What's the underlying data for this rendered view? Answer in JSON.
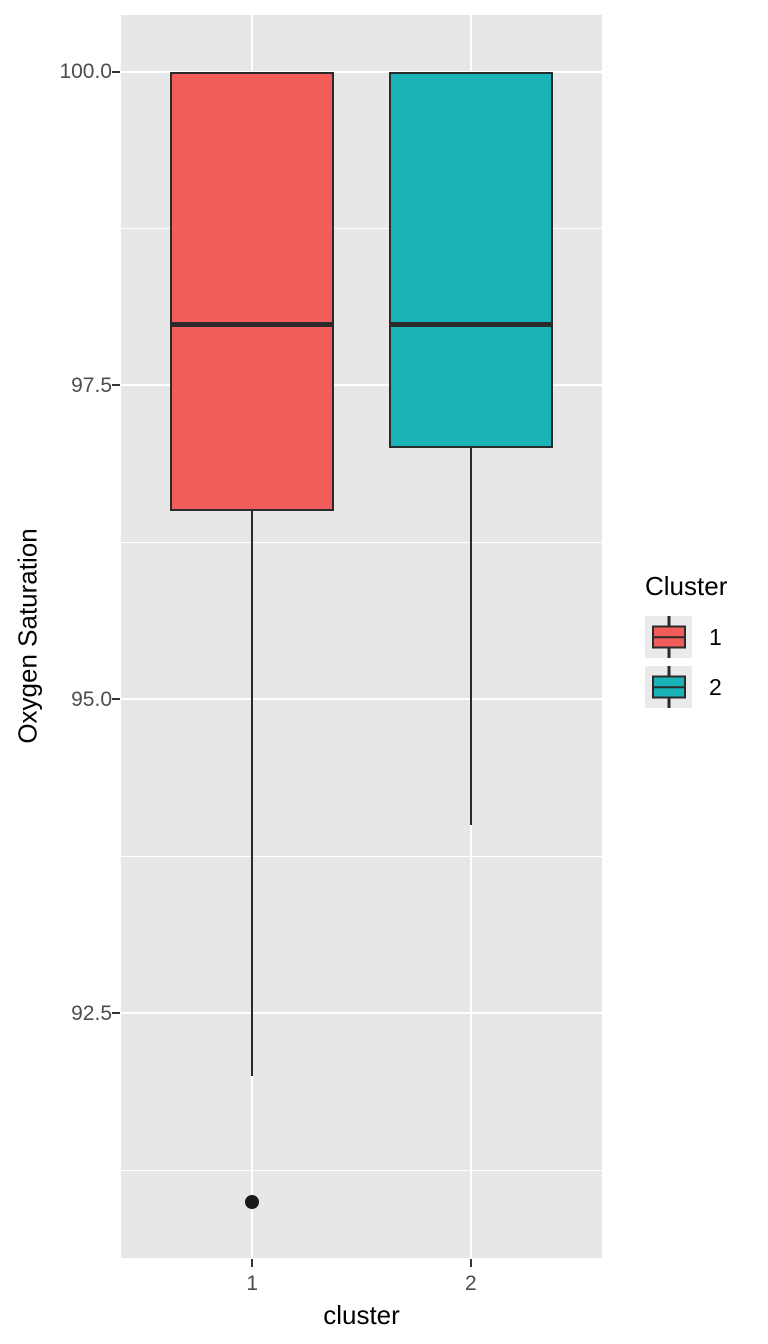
{
  "figure": {
    "background": "#FFFFFF",
    "panel_background": "#E7E7E7",
    "grid_color": "#FFFFFF",
    "box_stroke_color": "#2B2B2B",
    "tick_label_color": "#4D4D4D",
    "axis_title_color": "#000000"
  },
  "chart_data": {
    "type": "boxplot",
    "title": "",
    "xlabel": "cluster",
    "ylabel": "Oxygen Saturation",
    "categories": [
      "1",
      "2"
    ],
    "y_tick_labels": [
      "100.0",
      "97.5",
      "95.0",
      "92.5"
    ],
    "y_tick_values": [
      100.0,
      97.5,
      95.0,
      92.5
    ],
    "y_minor_tick_values": [
      98.75,
      96.25,
      93.75,
      91.25
    ],
    "ylim": [
      90.55,
      100.45
    ],
    "grid": true,
    "legend": {
      "position": "right",
      "title": "Cluster",
      "entries": [
        {
          "label": "1",
          "color": "#F25C5A"
        },
        {
          "label": "2",
          "color": "#1AB3B7"
        }
      ]
    },
    "series": [
      {
        "cluster": "1",
        "color": "#F25C5A",
        "whisker_low": 92.0,
        "q1": 96.5,
        "median": 98.0,
        "q3": 100.0,
        "whisker_high": 100.0,
        "outliers": [
          91.0
        ]
      },
      {
        "cluster": "2",
        "color": "#1AB3B7",
        "whisker_low": 94.0,
        "q1": 97.0,
        "median": 98.0,
        "q3": 100.0,
        "whisker_high": 100.0,
        "outliers": []
      }
    ]
  }
}
